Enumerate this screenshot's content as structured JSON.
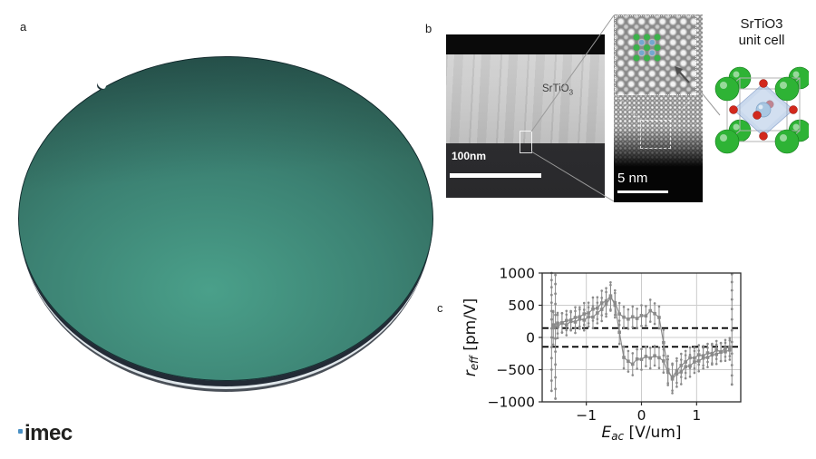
{
  "slide": {
    "background": "#ffffff"
  },
  "panel_labels": {
    "a": "a",
    "b": "b",
    "c": "c"
  },
  "wafer": {
    "colors": {
      "light": "#4aa08a",
      "mid": "#3c8273",
      "dark": "#2f6357",
      "edge": "#27534c",
      "rim_dark": "#232b36",
      "rim_light": "#dfe6ea",
      "rim_outer": "#4a5058"
    }
  },
  "tem_overview": {
    "material_label": {
      "text": "SrTiO",
      "sub": "3"
    },
    "scalebar_label": "100nm"
  },
  "tem_zoom": {
    "scalebar_label": "5 nm",
    "overlay": {
      "sr_marker_color": "#3cb24b",
      "ti_marker_color": "#74a7cf",
      "sr_grid": {
        "rows": 3,
        "cols": 3
      },
      "ti_grid": {
        "rows": 2,
        "cols": 2
      }
    }
  },
  "unit_cell": {
    "title_line1": "SrTiO3",
    "title_line2": "unit cell",
    "colors": {
      "sr": "#2eb335",
      "o": "#d2281c",
      "ti": "#a9c7e2",
      "octahedron": "rgba(150,180,220,0.5)"
    }
  },
  "logo": {
    "text": "imec",
    "dot_color": "#4a90c4",
    "text_color": "#21211f"
  },
  "chart_data": {
    "type": "scatter",
    "title": "",
    "xlabel": {
      "text": "E",
      "sub": "ac",
      "unit": " [V/um]"
    },
    "ylabel": {
      "text": "r",
      "sub": "eff",
      "unit": " [pm/V]"
    },
    "xlim": [
      -1.8,
      1.8
    ],
    "ylim": [
      -1000,
      1000
    ],
    "xticks": [
      -1,
      0,
      1
    ],
    "yticks": [
      -1000,
      -500,
      0,
      500,
      1000
    ],
    "grid": true,
    "legend": "none",
    "dashed_reference_lines": [
      145,
      -145
    ],
    "series_color": "#8a8a8a",
    "dashed_line_color": "#000000",
    "grid_color": "#cccccc",
    "spine_color": "#2b2b2b",
    "series": [
      {
        "name": "branch_forward",
        "x": [
          -1.6,
          -1.52,
          -1.44,
          -1.36,
          -1.28,
          -1.2,
          -1.12,
          -1.04,
          -0.96,
          -0.88,
          -0.8,
          -0.72,
          -0.64,
          -0.56,
          -0.48,
          -0.4,
          -0.32,
          -0.24,
          -0.16,
          -0.08,
          0,
          0.08,
          0.16,
          0.24,
          0.32,
          0.4,
          0.48,
          0.56,
          0.64,
          0.72,
          0.8,
          0.88,
          0.96,
          1.04,
          1.12,
          1.2,
          1.28,
          1.36,
          1.44,
          1.52,
          1.6
        ],
        "y": [
          150,
          170,
          225,
          195,
          250,
          240,
          285,
          270,
          320,
          315,
          380,
          435,
          515,
          615,
          540,
          365,
          315,
          285,
          320,
          295,
          340,
          335,
          415,
          370,
          310,
          -80,
          -500,
          -645,
          -565,
          -535,
          -455,
          -440,
          -380,
          -365,
          -320,
          -310,
          -270,
          -262,
          -228,
          -222,
          -195
        ],
        "err": [
          260,
          180,
          150,
          160,
          140,
          170,
          150,
          160,
          150,
          170,
          160,
          180,
          190,
          200,
          190,
          170,
          160,
          150,
          160,
          150,
          160,
          150,
          170,
          160,
          170,
          200,
          210,
          220,
          200,
          190,
          180,
          170,
          170,
          160,
          160,
          150,
          150,
          150,
          140,
          140,
          150
        ]
      },
      {
        "name": "branch_reverse",
        "x": [
          -1.6,
          -1.52,
          -1.44,
          -1.36,
          -1.28,
          -1.2,
          -1.12,
          -1.04,
          -0.96,
          -0.88,
          -0.8,
          -0.72,
          -0.64,
          -0.56,
          -0.48,
          -0.4,
          -0.32,
          -0.24,
          -0.16,
          -0.08,
          0,
          0.08,
          0.16,
          0.24,
          0.32,
          0.4,
          0.48,
          0.56,
          0.64,
          0.72,
          0.8,
          0.88,
          0.96,
          1.04,
          1.12,
          1.2,
          1.28,
          1.36,
          1.44,
          1.52,
          1.6
        ],
        "y": [
          195,
          222,
          228,
          262,
          270,
          310,
          320,
          365,
          380,
          440,
          455,
          535,
          565,
          645,
          500,
          80,
          -310,
          -370,
          -415,
          -335,
          -340,
          -295,
          -320,
          -285,
          -315,
          -365,
          -540,
          -615,
          -515,
          -435,
          -380,
          -315,
          -320,
          -270,
          -285,
          -240,
          -250,
          -195,
          -225,
          -170,
          -150
        ],
        "err": [
          200,
          160,
          150,
          150,
          140,
          160,
          150,
          170,
          160,
          180,
          170,
          190,
          200,
          210,
          190,
          180,
          170,
          160,
          170,
          150,
          160,
          150,
          160,
          150,
          160,
          180,
          200,
          210,
          190,
          180,
          170,
          160,
          160,
          150,
          150,
          140,
          150,
          140,
          140,
          130,
          140
        ]
      }
    ],
    "edge_transients": [
      {
        "x": -1.63,
        "y": [
          1000,
          890,
          780,
          660,
          540,
          410,
          280,
          140,
          0,
          -150,
          -320,
          -500,
          -670,
          -830
        ]
      },
      {
        "x": -1.56,
        "y": [
          970,
          830,
          680,
          520,
          350,
          170,
          -20,
          -220,
          -420,
          -620,
          -800,
          -950
        ]
      },
      {
        "x": 1.64,
        "y": [
          980,
          860,
          730,
          590,
          440,
          280,
          110,
          -70,
          -250,
          -430,
          -590,
          -730
        ]
      }
    ]
  }
}
